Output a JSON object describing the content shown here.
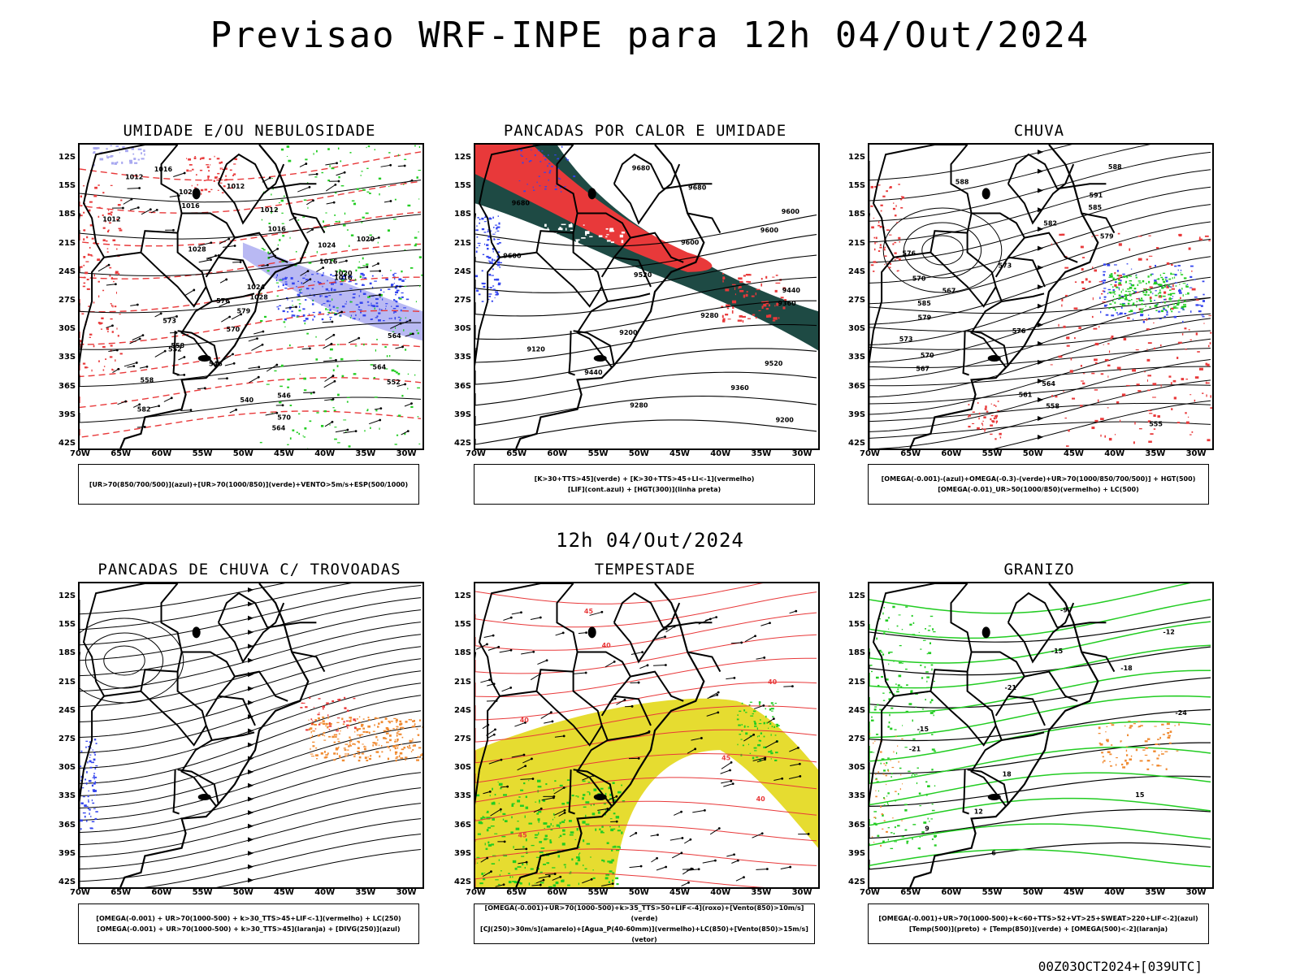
{
  "title": "Previsao WRF-INPE  para 12h 04/Out/2024",
  "subtitle": "12h 04/Out/2024",
  "footer": "00Z03OCT2024+[039UTC]",
  "lat_labels": [
    "12S",
    "15S",
    "18S",
    "21S",
    "24S",
    "27S",
    "30S",
    "33S",
    "36S",
    "39S",
    "42S"
  ],
  "lon_labels": [
    "70W",
    "65W",
    "60W",
    "55W",
    "50W",
    "45W",
    "40W",
    "35W",
    "30W"
  ],
  "colors": {
    "red": "#e8393a",
    "green": "#22cc22",
    "blue": "#3344ee",
    "dark_teal": "#1e4a44",
    "yellow": "#e6dc30",
    "orange": "#f08a30",
    "lavender": "#a8a8f0"
  },
  "panels": [
    {
      "title": "UMIDADE E/OU NEBULOSIDADE",
      "legend": [
        "[UR>70(850/700/500)](azul)+[UR>70(1000/850)](verde)+VENTO>5m/s+ESP(500/1000)"
      ],
      "contours": [
        "1016",
        "1012",
        "1012",
        "1020",
        "1016",
        "1012",
        "1012",
        "1016",
        "1020",
        "1024",
        "1028",
        "1016",
        "1020",
        "1016",
        "1024",
        "1028",
        "576",
        "579",
        "573",
        "570",
        "564",
        "558",
        "552",
        "546",
        "564",
        "558",
        "552",
        "546",
        "540",
        "582",
        "570",
        "564"
      ]
    },
    {
      "title": "PANCADAS POR CALOR E UMIDADE",
      "legend": [
        "[K>30+TTS>45](verde) + [K>30+TTS>45+LI<-1](vermelho)",
        "[LIF](cont.azul) + [HGT(300)](linha preta)"
      ],
      "contours": [
        "9680",
        "9680",
        "9680",
        "9600",
        "9600",
        "9600",
        "9600",
        "9520",
        "9440",
        "9360",
        "9280",
        "9200",
        "9120",
        "9520",
        "9440",
        "9360",
        "9280",
        "9200"
      ]
    },
    {
      "title": "CHUVA",
      "legend": [
        "[OMEGA(-0.001)-(azul)+OMEGA(-0.3)-(verde)+UR>70(1000/850/700/500)] + HGT(500)",
        "[OMEGA(-0.01)_UR>50(1000/850)(vermelho) + LC(500)"
      ],
      "contours": [
        "588",
        "588",
        "591",
        "585",
        "582",
        "579",
        "576",
        "573",
        "570",
        "567",
        "585",
        "579",
        "576",
        "573",
        "570",
        "567",
        "564",
        "561",
        "558",
        "555"
      ]
    },
    {
      "title": "PANCADAS DE CHUVA C/ TROVOADAS",
      "legend": [
        "[OMEGA(-0.001) + UR>70(1000-500) + k>30_TTS>45+LIF<-1](vermelho) + LC(250)",
        "[OMEGA(-0.001) + UR>70(1000-500) + k>30_TTS>45](laranja) + [DIVG(250)](azul)"
      ],
      "contours": []
    },
    {
      "title": "TEMPESTADE",
      "legend": [
        "[OMEGA(-0.001)+UR>70(1000-500)+k>35_TTS>50+LIF<-4](roxo)+[Vento(850)>10m/s](verde)",
        "[CJ(250)>30m/s](amarelo)+[Agua_P(40-60mm)](vermelho)+LC(850)+[Vento(850)>15m/s](vetor)"
      ],
      "contours": [
        "45",
        "40",
        "40",
        "40",
        "45",
        "40",
        "45"
      ]
    },
    {
      "title": "GRANIZO",
      "legend": [
        "[OMEGA(-0.001)+UR>70(1000-500)+k<60+TTS>52+VT>25+SWEAT>220+LIF<-2](azul)",
        "[Temp(500)](preto) + [Temp(850)](verde) + [OMEGA(500)<-2](laranja)"
      ],
      "contours": [
        "-9",
        "-12",
        "-15",
        "-18",
        "-21",
        "-24",
        "-15",
        "-21",
        "18",
        "15",
        "12",
        "9",
        "6"
      ]
    }
  ]
}
